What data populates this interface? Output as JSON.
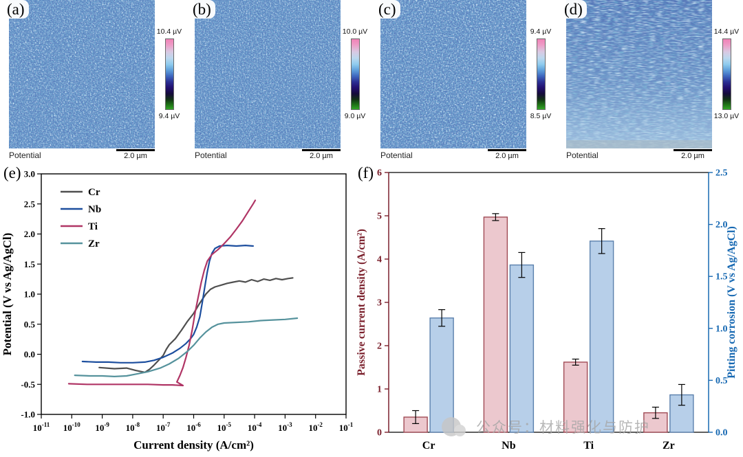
{
  "panels": [
    {
      "label": "(a)",
      "scale_max": "10.4 µV",
      "scale_min": "9.4 µV",
      "caption": "Potential",
      "scale_bar": "2.0 µm"
    },
    {
      "label": "(b)",
      "scale_max": "10.0 µV",
      "scale_min": "9.0 µV",
      "caption": "Potential",
      "scale_bar": "2.0 µm"
    },
    {
      "label": "(c)",
      "scale_max": "9.4 µV",
      "scale_min": "8.5 µV",
      "caption": "Potential",
      "scale_bar": "2.0 µm"
    },
    {
      "label": "(d)",
      "scale_max": "14.4 µV",
      "scale_min": "13.0 µV",
      "caption": "Potential",
      "scale_bar": "2.0 µm"
    }
  ],
  "colors": {
    "map_base": "#6fa9d2",
    "map_speckle": "#17317d",
    "colorbar_top_pink": "#f083b6",
    "colorbar_bottom_green": "#32a526",
    "left_axis_red": "#7a1f2b",
    "right_axis_blue": "#1668b2"
  },
  "chart_data": [
    {
      "panel_label": "(e)",
      "type": "line",
      "title": "",
      "xlabel": "Current density (A/cm²)",
      "ylabel": "Potential (V vs Ag/AgCl)",
      "x_scale": "log",
      "x_exponent_range": [
        -11,
        -1
      ],
      "ylim": [
        -1.0,
        3.0
      ],
      "ytick_step": 0.5,
      "grid": false,
      "legend_position": "top-left",
      "series": [
        {
          "name": "Cr",
          "color": "#4f4f4f",
          "points": [
            [
              -9.1,
              -0.22
            ],
            [
              -8.6,
              -0.24
            ],
            [
              -8.2,
              -0.23
            ],
            [
              -7.9,
              -0.27
            ],
            [
              -7.6,
              -0.3
            ],
            [
              -7.45,
              -0.25
            ],
            [
              -7.3,
              -0.18
            ],
            [
              -7.15,
              -0.1
            ],
            [
              -7.0,
              -0.02
            ],
            [
              -6.9,
              0.08
            ],
            [
              -6.8,
              0.16
            ],
            [
              -6.6,
              0.26
            ],
            [
              -6.4,
              0.4
            ],
            [
              -6.2,
              0.55
            ],
            [
              -6.0,
              0.68
            ],
            [
              -5.8,
              0.85
            ],
            [
              -5.6,
              1.0
            ],
            [
              -5.45,
              1.08
            ],
            [
              -5.3,
              1.12
            ],
            [
              -5.1,
              1.15
            ],
            [
              -4.9,
              1.18
            ],
            [
              -4.7,
              1.2
            ],
            [
              -4.5,
              1.22
            ],
            [
              -4.3,
              1.2
            ],
            [
              -4.1,
              1.24
            ],
            [
              -3.9,
              1.21
            ],
            [
              -3.7,
              1.25
            ],
            [
              -3.5,
              1.23
            ],
            [
              -3.3,
              1.26
            ],
            [
              -3.1,
              1.24
            ],
            [
              -2.9,
              1.26
            ],
            [
              -2.75,
              1.27
            ]
          ]
        },
        {
          "name": "Nb",
          "color": "#1c4e9e",
          "points": [
            [
              -9.65,
              -0.12
            ],
            [
              -9.2,
              -0.13
            ],
            [
              -8.8,
              -0.13
            ],
            [
              -8.4,
              -0.14
            ],
            [
              -8.0,
              -0.14
            ],
            [
              -7.6,
              -0.13
            ],
            [
              -7.3,
              -0.1
            ],
            [
              -7.0,
              -0.05
            ],
            [
              -6.7,
              0.02
            ],
            [
              -6.45,
              0.1
            ],
            [
              -6.25,
              0.18
            ],
            [
              -6.1,
              0.26
            ],
            [
              -6.0,
              0.33
            ],
            [
              -5.9,
              0.45
            ],
            [
              -5.8,
              0.62
            ],
            [
              -5.72,
              0.85
            ],
            [
              -5.64,
              1.1
            ],
            [
              -5.56,
              1.35
            ],
            [
              -5.48,
              1.55
            ],
            [
              -5.4,
              1.68
            ],
            [
              -5.3,
              1.76
            ],
            [
              -5.15,
              1.8
            ],
            [
              -4.9,
              1.81
            ],
            [
              -4.6,
              1.8
            ],
            [
              -4.3,
              1.81
            ],
            [
              -4.05,
              1.8
            ]
          ]
        },
        {
          "name": "Ti",
          "color": "#b03565",
          "points": [
            [
              -10.1,
              -0.49
            ],
            [
              -9.5,
              -0.5
            ],
            [
              -9.0,
              -0.5
            ],
            [
              -8.5,
              -0.5
            ],
            [
              -8.0,
              -0.5
            ],
            [
              -7.5,
              -0.5
            ],
            [
              -7.0,
              -0.51
            ],
            [
              -6.7,
              -0.51
            ],
            [
              -6.35,
              -0.52
            ],
            [
              -6.55,
              -0.46
            ],
            [
              -6.45,
              -0.35
            ],
            [
              -6.35,
              -0.22
            ],
            [
              -6.25,
              -0.05
            ],
            [
              -6.15,
              0.15
            ],
            [
              -6.05,
              0.4
            ],
            [
              -5.95,
              0.7
            ],
            [
              -5.85,
              0.95
            ],
            [
              -5.75,
              1.2
            ],
            [
              -5.65,
              1.4
            ],
            [
              -5.55,
              1.55
            ],
            [
              -5.4,
              1.66
            ],
            [
              -5.2,
              1.74
            ],
            [
              -5.0,
              1.84
            ],
            [
              -4.8,
              1.95
            ],
            [
              -4.6,
              2.08
            ],
            [
              -4.4,
              2.22
            ],
            [
              -4.2,
              2.38
            ],
            [
              -4.05,
              2.5
            ],
            [
              -3.98,
              2.56
            ]
          ]
        },
        {
          "name": "Zr",
          "color": "#55929c",
          "points": [
            [
              -9.9,
              -0.35
            ],
            [
              -9.4,
              -0.36
            ],
            [
              -9.0,
              -0.36
            ],
            [
              -8.6,
              -0.37
            ],
            [
              -8.2,
              -0.36
            ],
            [
              -7.9,
              -0.33
            ],
            [
              -7.5,
              -0.29
            ],
            [
              -7.1,
              -0.23
            ],
            [
              -6.8,
              -0.16
            ],
            [
              -6.5,
              -0.07
            ],
            [
              -6.2,
              0.05
            ],
            [
              -6.0,
              0.15
            ],
            [
              -5.8,
              0.27
            ],
            [
              -5.6,
              0.37
            ],
            [
              -5.4,
              0.45
            ],
            [
              -5.2,
              0.5
            ],
            [
              -5.0,
              0.52
            ],
            [
              -4.6,
              0.53
            ],
            [
              -4.2,
              0.54
            ],
            [
              -3.8,
              0.56
            ],
            [
              -3.4,
              0.57
            ],
            [
              -3.0,
              0.58
            ],
            [
              -2.6,
              0.6
            ]
          ]
        }
      ]
    },
    {
      "panel_label": "(f)",
      "type": "bar",
      "categories": [
        "Cr",
        "Nb",
        "Ti",
        "Zr"
      ],
      "left_axis": {
        "label": "Passive current density (A/cm²)",
        "lim": [
          0,
          6
        ],
        "tick_step": 1,
        "color": "#7a1f2b"
      },
      "right_axis": {
        "label": "Pitting corrosion (V vs Ag/AgCl)",
        "lim": [
          0,
          2.5
        ],
        "tick_step": 0.5,
        "color": "#1668b2"
      },
      "series": [
        {
          "name": "Passive current density",
          "axis": "left",
          "fill": "#ecc8ce",
          "edge": "#a04a55",
          "values": [
            0.35,
            4.97,
            1.62,
            0.45
          ],
          "errors": [
            0.15,
            0.08,
            0.07,
            0.13
          ]
        },
        {
          "name": "Pitting corrosion",
          "axis": "right",
          "fill": "#b7cfe9",
          "edge": "#5b80ad",
          "values": [
            1.1,
            1.61,
            1.84,
            0.36
          ],
          "errors": [
            0.08,
            0.12,
            0.12,
            0.1
          ]
        }
      ]
    }
  ],
  "watermark": {
    "text": "公众号：材料强化与防护"
  }
}
